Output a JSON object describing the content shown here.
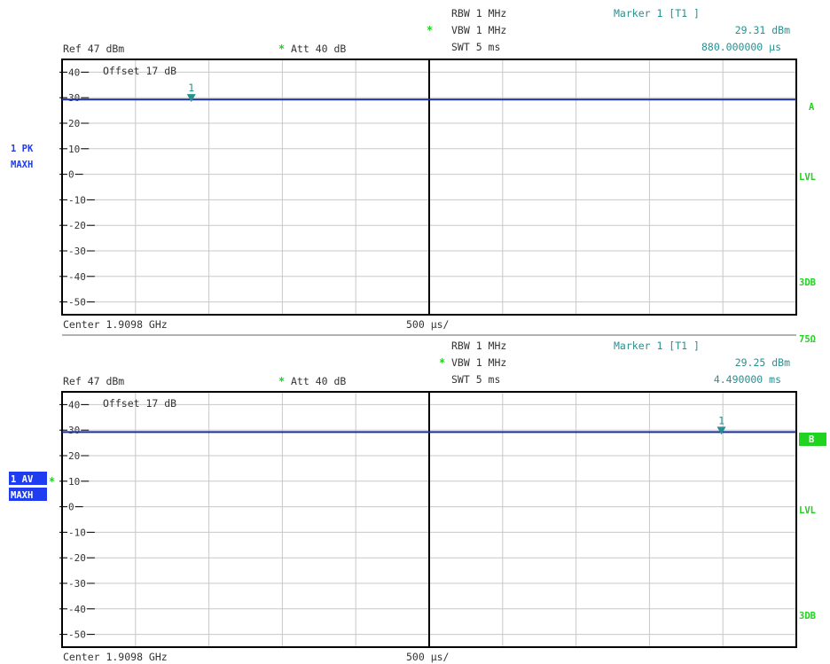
{
  "colors": {
    "trace": "#1a2e9c",
    "marker": "#2a8f8f",
    "green": "#1fd31f",
    "badge_blue": "#1f3cf0",
    "grid": "#c8c8c8",
    "frame": "#000000",
    "text": "#333333"
  },
  "chart_data": [
    {
      "type": "line",
      "ylim": [
        -55,
        45
      ],
      "yticks": [
        {
          "v": 40,
          "label": "40"
        },
        {
          "v": 30,
          "label": "30"
        },
        {
          "v": 20,
          "label": "20"
        },
        {
          "v": 10,
          "label": "10"
        },
        {
          "v": 0,
          "label": "0"
        },
        {
          "v": -10,
          "label": "-10"
        },
        {
          "v": -20,
          "label": "-20"
        },
        {
          "v": -30,
          "label": "-30"
        },
        {
          "v": -40,
          "label": "-40"
        },
        {
          "v": -50,
          "label": "-50"
        }
      ],
      "xlim_ms": [
        0,
        5
      ],
      "x_divisions": 10,
      "series": [
        {
          "x": [
            0,
            5
          ],
          "y": [
            29.3,
            29.3
          ]
        }
      ],
      "marker": {
        "label": "1",
        "x_ms": 0.88,
        "y": 29.31
      },
      "header": {
        "ref": "Ref  47 dBm",
        "att_star": "*",
        "att": "Att  40 dB",
        "rbw": "RBW 1 MHz",
        "vbw_star": "*",
        "vbw": "VBW 1 MHz",
        "swt": "SWT 5 ms",
        "marker_title": "Marker 1 [T1 ]",
        "marker_level": "29.31 dBm",
        "marker_time": "880.000000 µs"
      },
      "offset_label": "Offset  17 dB",
      "footer": {
        "center": "Center 1.9098 GHz",
        "span": "500 µs/"
      },
      "left_badges": {
        "line1": "1 PK",
        "line2": "MAXH",
        "highlighted": false
      },
      "right_labels": {
        "top": "A",
        "mid": "LVL",
        "bottom": "3DB"
      }
    },
    {
      "type": "line",
      "ylim": [
        -55,
        45
      ],
      "yticks": [
        {
          "v": 40,
          "label": "40"
        },
        {
          "v": 30,
          "label": "30"
        },
        {
          "v": 20,
          "label": "20"
        },
        {
          "v": 10,
          "label": "10"
        },
        {
          "v": 0,
          "label": "0"
        },
        {
          "v": -10,
          "label": "-10"
        },
        {
          "v": -20,
          "label": "-20"
        },
        {
          "v": -30,
          "label": "-30"
        },
        {
          "v": -40,
          "label": "-40"
        },
        {
          "v": -50,
          "label": "-50"
        }
      ],
      "xlim_ms": [
        0,
        5
      ],
      "x_divisions": 10,
      "series": [
        {
          "x": [
            0,
            5
          ],
          "y": [
            29.25,
            29.25
          ]
        }
      ],
      "marker": {
        "label": "1",
        "x_ms": 4.49,
        "y": 29.25
      },
      "header": {
        "ref": "Ref  47 dBm",
        "att_star": "*",
        "att": "Att  40 dB",
        "rbw": "RBW 1 MHz",
        "vbw_star": "*",
        "vbw": "VBW 1 MHz",
        "swt": "SWT 5 ms",
        "marker_title": "Marker 1 [T1 ]",
        "marker_level": "29.25 dBm",
        "marker_time": "4.490000 ms"
      },
      "offset_label": "Offset  17 dB",
      "footer": {
        "center": "Center 1.9098 GHz",
        "span": "500 µs/"
      },
      "left_badges": {
        "line1": "1 AV",
        "line2": "MAXH",
        "highlighted": true,
        "star": "*"
      },
      "right_labels": {
        "top": "B",
        "mid": "LVL",
        "bottom": "3DB"
      }
    }
  ],
  "separator_label": "75Ω"
}
